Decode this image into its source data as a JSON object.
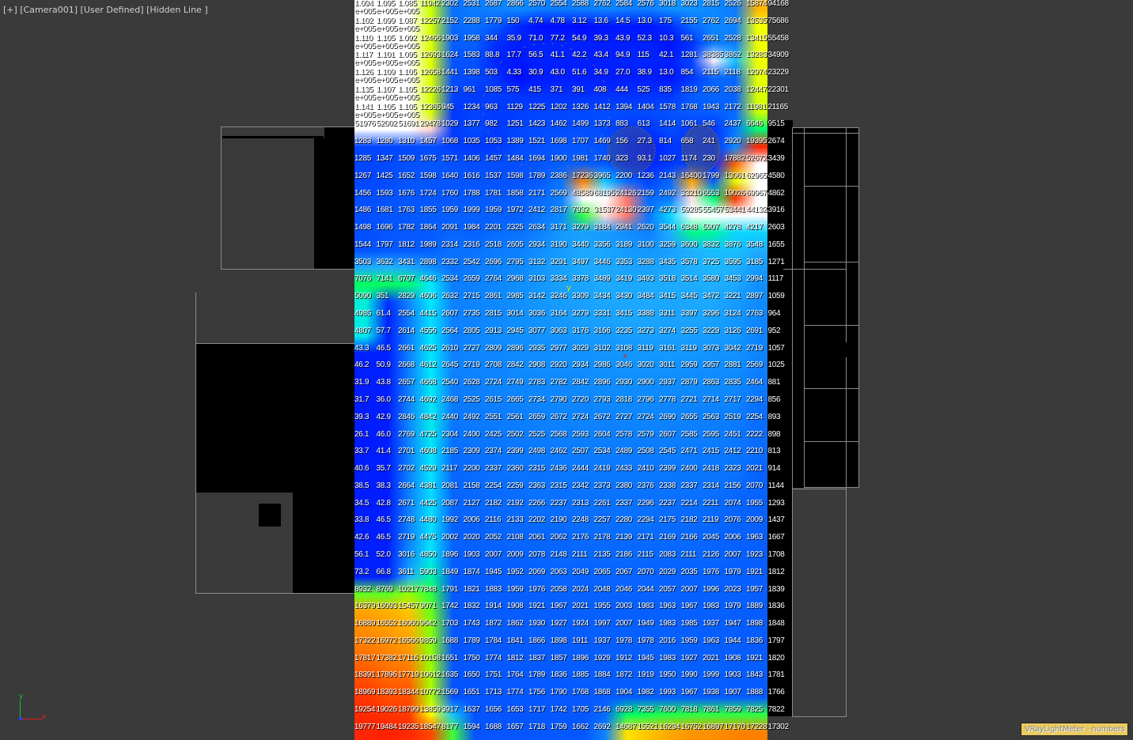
{
  "viewport": {
    "label": "[+] [Camera001] [User Defined] [Hidden Line ]",
    "overlay_badge": "VRayLightMeter - numbers",
    "badge_color": "#ebcb5f",
    "background": "#3a3a3a",
    "axis_gizmo": {
      "x": "x",
      "y": "y",
      "x_color": "#e02020",
      "y_color": "#20c020",
      "z_color": "#2040ff"
    },
    "scene_markers": {
      "y_marker": "y",
      "x_marker": "x"
    }
  },
  "colormap": [
    {
      "value": 1,
      "color": "#0000ff"
    },
    {
      "value": 1000,
      "color": "#0038ff"
    },
    {
      "value": 2000,
      "color": "#0660ff"
    },
    {
      "value": 3000,
      "color": "#1090ff"
    },
    {
      "value": 3600,
      "color": "#20b0ff"
    },
    {
      "value": 4600,
      "color": "#00e8ff"
    },
    {
      "value": 7000,
      "color": "#00ff60"
    },
    {
      "value": 10000,
      "color": "#90ff00"
    },
    {
      "value": 14000,
      "color": "#ffff00"
    },
    {
      "value": 16500,
      "color": "#ffa000"
    },
    {
      "value": 19500,
      "color": "#ff2000"
    },
    {
      "value": 30000,
      "color": "#ffd8d8"
    },
    {
      "value": 45000,
      "color": "#ffffff"
    }
  ],
  "light_meter": {
    "rows": [
      [
        "1.094e+005",
        "1.095e+005",
        "1.085e+005",
        "11942",
        "2302",
        "2531",
        "2687",
        "2866",
        "2570",
        "2554",
        "2588",
        "2762",
        "2584",
        "2576",
        "3018",
        "3023",
        "2815",
        "2526",
        "15874",
        "94168"
      ],
      [
        "1.102e+005",
        "1.099e+005",
        "1.087e+005",
        "12257",
        "2152",
        "2288",
        "1779",
        "150",
        "4.74",
        "4.78",
        "3.12",
        "13.6",
        "14.5",
        "13.0",
        "175",
        "2155",
        "2762",
        "2694",
        "13535",
        "75686"
      ],
      [
        "1.110e+005",
        "1.105e+005",
        "1.092e+005",
        "12466",
        "1903",
        "1958",
        "344",
        "35.9",
        "71.0",
        "77.2",
        "54.9",
        "39.3",
        "43.9",
        "52.3",
        "10.3",
        "561",
        "2651",
        "2528",
        "13415",
        "55458"
      ],
      [
        "1.117e+005",
        "1.101e+005",
        "1.095e+005",
        "12693",
        "1624",
        "1583",
        "88.8",
        "17.7",
        "56.5",
        "41.1",
        "42.2",
        "43.4",
        "94.9",
        "115",
        "42.1",
        "1281",
        "38385",
        "3862",
        "13283",
        "34909"
      ],
      [
        "1.126e+005",
        "1.109e+005",
        "1.105e+005",
        "12658",
        "1441",
        "1398",
        "503",
        "4.33",
        "30.9",
        "43.0",
        "51.6",
        "34.9",
        "27.0",
        "38.9",
        "13.0",
        "854",
        "2115",
        "2118",
        "12974",
        "23229"
      ],
      [
        "1.135e+005",
        "1.107e+005",
        "1.105e+005",
        "12226",
        "1213",
        "961",
        "1085",
        "575",
        "415",
        "371",
        "391",
        "408",
        "444",
        "525",
        "835",
        "1819",
        "2066",
        "2038",
        "12447",
        "22301"
      ],
      [
        "1.141e+005",
        "1.105e+005",
        "1.105e+005",
        "12365",
        "945",
        "1234",
        "963",
        "1129",
        "1225",
        "1202",
        "1326",
        "1412",
        "1394",
        "1404",
        "1578",
        "1768",
        "1943",
        "2172",
        "11981",
        "21165"
      ],
      [
        "51976",
        "52002",
        "51691",
        "29478",
        "1029",
        "1377",
        "982",
        "1251",
        "1423",
        "1462",
        "1499",
        "1373",
        "883",
        "613",
        "1414",
        "1061",
        "546",
        "2437",
        "6646",
        "9515"
      ],
      [
        "1283",
        "1280",
        "1310",
        "1457",
        "1068",
        "1035",
        "1053",
        "1389",
        "1521",
        "1698",
        "1707",
        "1469",
        "156",
        "27.3",
        "814",
        "658",
        "241",
        "2920",
        "19395",
        "2674"
      ],
      [
        "1285",
        "1347",
        "1509",
        "1675",
        "1571",
        "1406",
        "1457",
        "1484",
        "1694",
        "1900",
        "1981",
        "1740",
        "323",
        "93.1",
        "1027",
        "1174",
        "230",
        "17882",
        "52672",
        "3439"
      ],
      [
        "1267",
        "1425",
        "1652",
        "1598",
        "1640",
        "1616",
        "1537",
        "1598",
        "1789",
        "2386",
        "17236",
        "3965",
        "2200",
        "1236",
        "2143",
        "16400",
        "1799",
        "13061",
        "62965",
        "4580"
      ],
      [
        "1456",
        "1593",
        "1676",
        "1724",
        "1760",
        "1788",
        "1781",
        "1858",
        "2171",
        "2569",
        "48589",
        "68195",
        "24126",
        "2159",
        "2492",
        "33210",
        "6553",
        "19026",
        "69967",
        "4862"
      ],
      [
        "1486",
        "1681",
        "1763",
        "1855",
        "1959",
        "1999",
        "1959",
        "1972",
        "2412",
        "2817",
        "7932",
        "31537",
        "24130",
        "2397",
        "4273",
        "59285",
        "55457",
        "53441",
        "44132",
        "3916"
      ],
      [
        "1498",
        "1696",
        "1782",
        "1864",
        "2091",
        "1984",
        "2201",
        "2325",
        "2634",
        "3171",
        "3279",
        "3184",
        "2941",
        "2620",
        "3544",
        "6348",
        "5907",
        "4278",
        "4217",
        "2603"
      ],
      [
        "1544",
        "1797",
        "1812",
        "1989",
        "2314",
        "2316",
        "2518",
        "2605",
        "2934",
        "3190",
        "3440",
        "3356",
        "3189",
        "3100",
        "3259",
        "3600",
        "3832",
        "3876",
        "3548",
        "1655"
      ],
      [
        "3503",
        "3632",
        "3431",
        "2898",
        "2332",
        "2542",
        "2696",
        "2795",
        "3132",
        "3291",
        "3497",
        "3446",
        "3353",
        "3288",
        "3435",
        "3578",
        "3725",
        "3595",
        "3185",
        "1271"
      ],
      [
        "7076",
        "7141",
        "6707",
        "4646",
        "2534",
        "2659",
        "2764",
        "2968",
        "3103",
        "3334",
        "3378",
        "3489",
        "3419",
        "3493",
        "3518",
        "3514",
        "3580",
        "3453",
        "2994",
        "1117"
      ],
      [
        "5090",
        "351",
        "2829",
        "4606",
        "2632",
        "2715",
        "2861",
        "2985",
        "3142",
        "3246",
        "3309",
        "3434",
        "3430",
        "3484",
        "3415",
        "3445",
        "3472",
        "3221",
        "2897",
        "1059"
      ],
      [
        "4985",
        "61.4",
        "2554",
        "4415",
        "2607",
        "2735",
        "2815",
        "3014",
        "3036",
        "3164",
        "3279",
        "3331",
        "3415",
        "3388",
        "3311",
        "3397",
        "3296",
        "3124",
        "2763",
        "964"
      ],
      [
        "4807",
        "57.7",
        "2614",
        "4556",
        "2564",
        "2805",
        "2913",
        "2945",
        "3077",
        "3063",
        "3176",
        "3166",
        "3235",
        "3273",
        "3274",
        "3255",
        "3229",
        "3126",
        "2691",
        "952"
      ],
      [
        "43.3",
        "46.5",
        "2661",
        "4625",
        "2610",
        "2727",
        "2809",
        "2896",
        "2935",
        "2977",
        "3029",
        "3102",
        "3108",
        "3119",
        "3161",
        "3119",
        "3073",
        "3042",
        "2719",
        "1057"
      ],
      [
        "46.2",
        "50.9",
        "2668",
        "4612",
        "2645",
        "2719",
        "2708",
        "2842",
        "2908",
        "2920",
        "2934",
        "2986",
        "3046",
        "3020",
        "3011",
        "2959",
        "2957",
        "2881",
        "2569",
        "1025"
      ],
      [
        "31.9",
        "43.8",
        "2657",
        "4668",
        "2540",
        "2628",
        "2724",
        "2749",
        "2783",
        "2782",
        "2842",
        "2896",
        "2930",
        "2900",
        "2937",
        "2879",
        "2863",
        "2835",
        "2464",
        "881"
      ],
      [
        "31.7",
        "36.0",
        "2744",
        "4692",
        "2468",
        "2525",
        "2615",
        "2665",
        "2734",
        "2790",
        "2720",
        "2793",
        "2818",
        "2796",
        "2778",
        "2721",
        "2714",
        "2717",
        "2294",
        "856"
      ],
      [
        "39.3",
        "42.9",
        "2846",
        "4842",
        "2440",
        "2492",
        "2551",
        "2561",
        "2659",
        "2672",
        "2724",
        "2672",
        "2727",
        "2724",
        "2690",
        "2655",
        "2563",
        "2519",
        "2254",
        "893"
      ],
      [
        "26.1",
        "46.0",
        "2769",
        "4725",
        "2304",
        "2400",
        "2425",
        "2502",
        "2525",
        "2568",
        "2593",
        "2604",
        "2578",
        "2579",
        "2607",
        "2585",
        "2595",
        "2451",
        "2222",
        "898"
      ],
      [
        "33.7",
        "41.4",
        "2701",
        "4608",
        "2185",
        "2309",
        "2374",
        "2399",
        "2498",
        "2462",
        "2507",
        "2534",
        "2489",
        "2508",
        "2545",
        "2471",
        "2415",
        "2412",
        "2210",
        "813"
      ],
      [
        "40.6",
        "35.7",
        "2702",
        "4529",
        "2117",
        "2200",
        "2337",
        "2360",
        "2315",
        "2436",
        "2444",
        "2419",
        "2433",
        "2410",
        "2399",
        "2400",
        "2418",
        "2323",
        "2021",
        "914"
      ],
      [
        "38.5",
        "38.3",
        "2664",
        "4381",
        "2081",
        "2158",
        "2254",
        "2259",
        "2363",
        "2315",
        "2342",
        "2373",
        "2380",
        "2376",
        "2338",
        "2337",
        "2314",
        "2156",
        "2070",
        "1144"
      ],
      [
        "34.5",
        "42.8",
        "2671",
        "4425",
        "2087",
        "2127",
        "2182",
        "2192",
        "2266",
        "2237",
        "2313",
        "2261",
        "2337",
        "2296",
        "2237",
        "2214",
        "2211",
        "2074",
        "1955",
        "1293"
      ],
      [
        "33.8",
        "46.5",
        "2748",
        "4480",
        "1992",
        "2006",
        "2116",
        "2133",
        "2202",
        "2190",
        "2248",
        "2257",
        "2280",
        "2294",
        "2175",
        "2182",
        "2119",
        "2076",
        "2009",
        "1437"
      ],
      [
        "42.6",
        "46.5",
        "2719",
        "4475",
        "2002",
        "2020",
        "2052",
        "2108",
        "2061",
        "2062",
        "2176",
        "2178",
        "2139",
        "2171",
        "2169",
        "2166",
        "2045",
        "2006",
        "1963",
        "1667"
      ],
      [
        "56.1",
        "52.0",
        "3016",
        "4850",
        "1896",
        "1903",
        "2007",
        "2009",
        "2078",
        "2148",
        "2111",
        "2135",
        "2186",
        "2115",
        "2083",
        "2111",
        "2126",
        "2007",
        "1923",
        "1708"
      ],
      [
        "73.2",
        "66.8",
        "3611",
        "5903",
        "1849",
        "1874",
        "1945",
        "1952",
        "2069",
        "2063",
        "2049",
        "2065",
        "2067",
        "2070",
        "2029",
        "2035",
        "1976",
        "1979",
        "1921",
        "1812"
      ],
      [
        "8932",
        "8769",
        "10217",
        "7848",
        "1791",
        "1821",
        "1883",
        "1959",
        "1976",
        "2058",
        "2024",
        "2048",
        "2046",
        "2044",
        "2057",
        "2007",
        "1996",
        "2023",
        "1957",
        "1839"
      ],
      [
        "16379",
        "16093",
        "15457",
        "9071",
        "1742",
        "1832",
        "1914",
        "1908",
        "1921",
        "1967",
        "2021",
        "1955",
        "2003",
        "1983",
        "1963",
        "1967",
        "1983",
        "1979",
        "1889",
        "1836"
      ],
      [
        "16889",
        "16552",
        "16060",
        "9642",
        "1703",
        "1743",
        "1872",
        "1862",
        "1930",
        "1927",
        "1924",
        "1997",
        "2007",
        "1949",
        "1983",
        "1985",
        "1937",
        "1947",
        "1898",
        "1848"
      ],
      [
        "17322",
        "16972",
        "16566",
        "9859",
        "1688",
        "1789",
        "1784",
        "1841",
        "1866",
        "1898",
        "1911",
        "1937",
        "1978",
        "1978",
        "2016",
        "1959",
        "1963",
        "1944",
        "1836",
        "1797"
      ],
      [
        "17817",
        "17382",
        "17116",
        "10158",
        "1651",
        "1750",
        "1774",
        "1812",
        "1837",
        "1857",
        "1896",
        "1929",
        "1912",
        "1945",
        "1983",
        "1927",
        "2021",
        "1908",
        "1921",
        "1820"
      ],
      [
        "18391",
        "17896",
        "17719",
        "10612",
        "1635",
        "1650",
        "1751",
        "1764",
        "1789",
        "1836",
        "1885",
        "1884",
        "1872",
        "1919",
        "1950",
        "1990",
        "1999",
        "1903",
        "1843",
        "1781"
      ],
      [
        "18969",
        "18393",
        "18344",
        "10772",
        "1569",
        "1651",
        "1713",
        "1774",
        "1756",
        "1790",
        "1768",
        "1868",
        "1904",
        "1982",
        "1993",
        "1967",
        "1938",
        "1907",
        "1888",
        "1766"
      ],
      [
        "19254",
        "19026",
        "18799",
        "13859",
        "3917",
        "1637",
        "1656",
        "1653",
        "1717",
        "1742",
        "1705",
        "2146",
        "6928",
        "7355",
        "7600",
        "7818",
        "7861",
        "7859",
        "7825",
        "7822"
      ],
      [
        "19777",
        "19484",
        "19235",
        "18547",
        "8177",
        "1594",
        "1688",
        "1657",
        "1718",
        "1759",
        "1662",
        "2692",
        "14687",
        "15521",
        "16294",
        "16752",
        "16897",
        "17170",
        "17228",
        "17302"
      ]
    ]
  }
}
